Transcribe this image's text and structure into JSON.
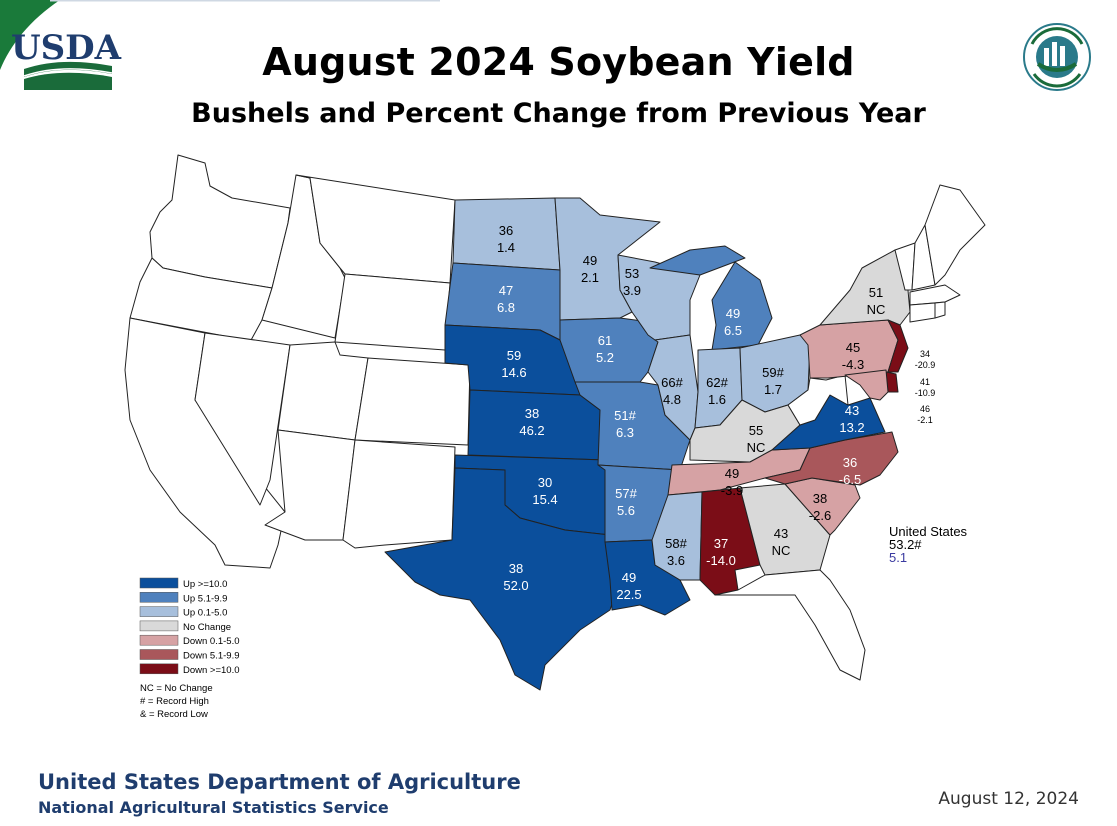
{
  "title": "August 2024 Soybean Yield",
  "subtitle": "Bushels and Percent Change from Previous Year",
  "logo_left_text": "USDA",
  "logo_right_text": "AGRICULTURE COUNTS",
  "colors": {
    "up10": "#0b4f9c",
    "up5": "#4f81bd",
    "up0": "#a7bfdc",
    "nochange": "#d9d9d9",
    "down0": "#d6a2a4",
    "down5": "#a9575b",
    "down10": "#7b0d17",
    "none": "#ffffff",
    "usda_green": "#1a6b3a",
    "usda_blue": "#1f3d6e"
  },
  "legend": {
    "items": [
      {
        "label": "Up >=10.0",
        "color": "#0b4f9c"
      },
      {
        "label": "Up 5.1-9.9",
        "color": "#4f81bd"
      },
      {
        "label": "Up 0.1-5.0",
        "color": "#a7bfdc"
      },
      {
        "label": "No Change",
        "color": "#d9d9d9"
      },
      {
        "label": "Down 0.1-5.0",
        "color": "#d6a2a4"
      },
      {
        "label": "Down 5.1-9.9",
        "color": "#a9575b"
      },
      {
        "label": "Down >=10.0",
        "color": "#7b0d17"
      }
    ],
    "notes": [
      "NC = No Change",
      "# = Record High",
      "& = Record Low"
    ]
  },
  "states": [
    {
      "abbr": "ND",
      "yield": "36",
      "change": "1.4",
      "category": "up0"
    },
    {
      "abbr": "MN",
      "yield": "49",
      "change": "2.1",
      "category": "up0"
    },
    {
      "abbr": "SD",
      "yield": "47",
      "change": "6.8",
      "category": "up5"
    },
    {
      "abbr": "WI",
      "yield": "53",
      "change": "3.9",
      "category": "up0"
    },
    {
      "abbr": "MI",
      "yield": "49",
      "change": "6.5",
      "category": "up5"
    },
    {
      "abbr": "NY",
      "yield": "51",
      "change": "NC",
      "category": "nochange"
    },
    {
      "abbr": "PA",
      "yield": "45",
      "change": "-4.3",
      "category": "down0"
    },
    {
      "abbr": "NJ",
      "yield": "34",
      "change": "-20.9",
      "category": "down10"
    },
    {
      "abbr": "DE",
      "yield": "41",
      "change": "-10.9",
      "category": "down10"
    },
    {
      "abbr": "MD",
      "yield": "46",
      "change": "-2.1",
      "category": "down0"
    },
    {
      "abbr": "IA",
      "yield": "61",
      "change": "5.2",
      "category": "up5"
    },
    {
      "abbr": "NE",
      "yield": "59",
      "change": "14.6",
      "category": "up10"
    },
    {
      "abbr": "IL",
      "yield": "66#",
      "change": "4.8",
      "category": "up0"
    },
    {
      "abbr": "IN",
      "yield": "62#",
      "change": "1.6",
      "category": "up0"
    },
    {
      "abbr": "OH",
      "yield": "59#",
      "change": "1.7",
      "category": "up0"
    },
    {
      "abbr": "KS",
      "yield": "38",
      "change": "46.2",
      "category": "up10"
    },
    {
      "abbr": "MO",
      "yield": "51#",
      "change": "6.3",
      "category": "up5"
    },
    {
      "abbr": "KY",
      "yield": "55",
      "change": "NC",
      "category": "nochange"
    },
    {
      "abbr": "VA",
      "yield": "43",
      "change": "13.2",
      "category": "up10"
    },
    {
      "abbr": "OK",
      "yield": "30",
      "change": "15.4",
      "category": "up10"
    },
    {
      "abbr": "AR",
      "yield": "57#",
      "change": "5.6",
      "category": "up5"
    },
    {
      "abbr": "TN",
      "yield": "49",
      "change": "-3.9",
      "category": "down0"
    },
    {
      "abbr": "NC",
      "yield": "36",
      "change": "-6.5",
      "category": "down5"
    },
    {
      "abbr": "SC",
      "yield": "38",
      "change": "-2.6",
      "category": "down0"
    },
    {
      "abbr": "MS",
      "yield": "58#",
      "change": "3.6",
      "category": "up0"
    },
    {
      "abbr": "AL",
      "yield": "37",
      "change": "-14.0",
      "category": "down10"
    },
    {
      "abbr": "GA",
      "yield": "43",
      "change": "NC",
      "category": "nochange"
    },
    {
      "abbr": "TX",
      "yield": "38",
      "change": "52.0",
      "category": "up10"
    },
    {
      "abbr": "LA",
      "yield": "49",
      "change": "22.5",
      "category": "up10"
    }
  ],
  "us_total": {
    "name": "United States",
    "yield": "53.2#",
    "change": "5.1"
  },
  "footer": {
    "department": "United States Department of Agriculture",
    "service": "National Agricultural Statistics Service",
    "date": "August 12, 2024"
  }
}
